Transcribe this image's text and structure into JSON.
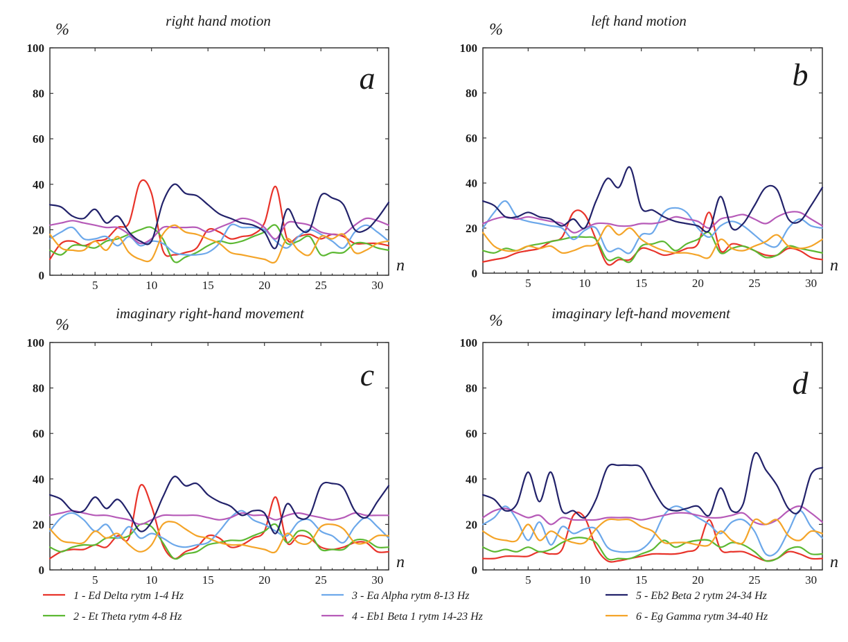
{
  "colors": {
    "delta": "#e8332a",
    "theta": "#5cb832",
    "alpha": "#6ca8ea",
    "beta1": "#b65ab8",
    "beta2": "#22226a",
    "gamma": "#f4a428",
    "axis": "#333333"
  },
  "legend": [
    {
      "key": "delta",
      "label": "1 - Ed Delta rytm 1-4 Hz"
    },
    {
      "key": "theta",
      "label": "2 - Et Theta rytm 4-8 Hz"
    },
    {
      "key": "alpha",
      "label": "3 - Ea Alpha rytm 8-13 Hz"
    },
    {
      "key": "beta1",
      "label": "4 - Eb1 Beta 1 rytm 14-23 Hz"
    },
    {
      "key": "beta2",
      "label": "5 - Eb2 Beta 2 rytm 24-34 Hz"
    },
    {
      "key": "gamma",
      "label": "6 - Eg Gamma rytm 34-40 Hz"
    }
  ],
  "chart_data": [
    {
      "type": "line",
      "title": "right hand motion",
      "panel_label": "a",
      "ylabel": "%",
      "xlabel": "n",
      "xlim": [
        1,
        31
      ],
      "ylim": [
        0,
        100
      ],
      "xticks": [
        5,
        10,
        15,
        20,
        25,
        30
      ],
      "yticks": [
        0,
        20,
        40,
        60,
        80,
        100
      ],
      "grid": false,
      "x": [
        1,
        2,
        3,
        4,
        5,
        6,
        7,
        8,
        9,
        10,
        11,
        12,
        13,
        14,
        15,
        16,
        17,
        18,
        19,
        20,
        21,
        22,
        23,
        24,
        25,
        26,
        27,
        28,
        29,
        30,
        31
      ],
      "series": [
        {
          "key": "delta",
          "name": "1 - Ed Delta rytm 1-4 Hz",
          "values": [
            7,
            14,
            15,
            13,
            15,
            16,
            21,
            23,
            41,
            36,
            11,
            9,
            10,
            12,
            20,
            19,
            16,
            17,
            18,
            23,
            39,
            16,
            17,
            18,
            16,
            18,
            17,
            14,
            14,
            14,
            13
          ]
        },
        {
          "key": "theta",
          "name": "2 - Et Theta rytm 4-8 Hz",
          "values": [
            11,
            9,
            13,
            13,
            12,
            15,
            16,
            18,
            20,
            21,
            16,
            6,
            8,
            10,
            13,
            15,
            14,
            15,
            17,
            19,
            22,
            14,
            15,
            17,
            9,
            10,
            10,
            14,
            14,
            12,
            11
          ]
        },
        {
          "key": "alpha",
          "name": "3 - Ea Alpha rytm 8-13 Hz",
          "values": [
            16,
            19,
            21,
            16,
            16,
            17,
            13,
            17,
            13,
            15,
            14,
            10,
            9,
            9,
            10,
            14,
            22,
            21,
            21,
            20,
            15,
            12,
            17,
            20,
            18,
            15,
            12,
            19,
            22,
            19,
            15
          ]
        },
        {
          "key": "beta1",
          "name": "4 - Eb1 Beta 1 rytm 14-23 Hz",
          "values": [
            22,
            23,
            24,
            23,
            22,
            21,
            21,
            18,
            14,
            16,
            21,
            21,
            21,
            21,
            19,
            21,
            23,
            25,
            24,
            21,
            16,
            23,
            23,
            22,
            19,
            18,
            18,
            22,
            25,
            24,
            22
          ]
        },
        {
          "key": "beta2",
          "name": "5 - Eb2 Beta 2 rytm 24-34 Hz",
          "values": [
            31,
            30,
            26,
            25,
            29,
            23,
            26,
            19,
            15,
            15,
            32,
            40,
            36,
            35,
            31,
            27,
            25,
            23,
            22,
            19,
            12,
            29,
            21,
            20,
            35,
            34,
            31,
            20,
            20,
            25,
            32
          ]
        },
        {
          "key": "gamma",
          "name": "6 - Eg Gamma rytm 34-40 Hz",
          "values": [
            18,
            12,
            11,
            11,
            15,
            11,
            17,
            10,
            7,
            7,
            18,
            22,
            19,
            18,
            16,
            14,
            10,
            9,
            8,
            7,
            6,
            16,
            11,
            9,
            17,
            16,
            18,
            10,
            11,
            14,
            15
          ]
        }
      ]
    },
    {
      "type": "line",
      "title": "left hand motion",
      "panel_label": "b",
      "ylabel": "%",
      "xlabel": "n",
      "xlim": [
        1,
        31
      ],
      "ylim": [
        0,
        100
      ],
      "xticks": [
        5,
        10,
        15,
        20,
        25,
        30
      ],
      "yticks": [
        0,
        20,
        40,
        60,
        80,
        100
      ],
      "grid": false,
      "x": [
        1,
        2,
        3,
        4,
        5,
        6,
        7,
        8,
        9,
        10,
        11,
        12,
        13,
        14,
        15,
        16,
        17,
        18,
        19,
        20,
        21,
        22,
        23,
        24,
        25,
        26,
        27,
        28,
        29,
        30,
        31
      ],
      "series": [
        {
          "key": "delta",
          "name": "1 - Ed Delta rytm 1-4 Hz",
          "values": [
            5,
            6,
            7,
            9,
            10,
            11,
            14,
            16,
            27,
            26,
            15,
            4,
            6,
            6,
            11,
            10,
            8,
            9,
            11,
            13,
            27,
            10,
            13,
            12,
            10,
            8,
            8,
            11,
            10,
            7,
            6
          ]
        },
        {
          "key": "theta",
          "name": "2 - Et Theta rytm 4-8 Hz",
          "values": [
            10,
            9,
            11,
            10,
            12,
            13,
            14,
            15,
            16,
            16,
            15,
            6,
            7,
            5,
            12,
            13,
            14,
            10,
            13,
            15,
            18,
            9,
            11,
            12,
            10,
            7,
            8,
            12,
            11,
            10,
            9
          ]
        },
        {
          "key": "alpha",
          "name": "3 - Ea Alpha rytm 8-13 Hz",
          "values": [
            20,
            27,
            32,
            25,
            23,
            22,
            21,
            20,
            15,
            19,
            20,
            10,
            11,
            9,
            17,
            18,
            27,
            29,
            27,
            20,
            16,
            21,
            23,
            21,
            17,
            13,
            12,
            20,
            24,
            21,
            20
          ]
        },
        {
          "key": "beta1",
          "name": "4 - Eb1 Beta 1 rytm 14-23 Hz",
          "values": [
            22,
            24,
            25,
            24,
            25,
            24,
            23,
            22,
            18,
            20,
            22,
            22,
            21,
            21,
            22,
            22,
            23,
            25,
            24,
            23,
            20,
            24,
            25,
            26,
            24,
            22,
            25,
            27,
            27,
            24,
            21
          ]
        },
        {
          "key": "beta2",
          "name": "5 - Eb2 Beta 2 rytm 24-34 Hz",
          "values": [
            32,
            30,
            25,
            25,
            27,
            25,
            24,
            21,
            24,
            20,
            32,
            42,
            38,
            47,
            29,
            28,
            25,
            23,
            22,
            21,
            19,
            34,
            20,
            22,
            30,
            38,
            37,
            24,
            23,
            30,
            38
          ]
        },
        {
          "key": "gamma",
          "name": "6 - Eg Gamma rytm 34-40 Hz",
          "values": [
            18,
            12,
            10,
            10,
            12,
            11,
            12,
            9,
            10,
            12,
            13,
            21,
            17,
            20,
            15,
            12,
            10,
            9,
            9,
            8,
            7,
            15,
            11,
            10,
            12,
            14,
            17,
            12,
            11,
            12,
            15
          ]
        }
      ]
    },
    {
      "type": "line",
      "title": "imaginary right-hand movement",
      "panel_label": "c",
      "ylabel": "%",
      "xlabel": "n",
      "xlim": [
        1,
        31
      ],
      "ylim": [
        0,
        100
      ],
      "xticks": [
        5,
        10,
        15,
        20,
        25,
        30
      ],
      "yticks": [
        0,
        20,
        40,
        60,
        80,
        100
      ],
      "grid": false,
      "x": [
        1,
        2,
        3,
        4,
        5,
        6,
        7,
        8,
        9,
        10,
        11,
        12,
        13,
        14,
        15,
        16,
        17,
        18,
        19,
        20,
        21,
        22,
        23,
        24,
        25,
        26,
        27,
        28,
        29,
        30,
        31
      ],
      "series": [
        {
          "key": "delta",
          "name": "1 - Ed Delta rytm 1-4 Hz",
          "values": [
            5,
            8,
            9,
            9,
            11,
            10,
            15,
            14,
            37,
            28,
            11,
            5,
            8,
            10,
            15,
            14,
            10,
            11,
            14,
            17,
            32,
            12,
            15,
            14,
            10,
            9,
            10,
            12,
            12,
            8,
            8
          ]
        },
        {
          "key": "theta",
          "name": "2 - Et Theta rytm 4-8 Hz",
          "values": [
            10,
            8,
            10,
            11,
            11,
            14,
            14,
            15,
            20,
            19,
            12,
            5,
            7,
            8,
            11,
            12,
            13,
            13,
            15,
            17,
            20,
            12,
            17,
            16,
            9,
            9,
            9,
            13,
            13,
            10,
            10
          ]
        },
        {
          "key": "alpha",
          "name": "3 - Ea Alpha rytm 8-13 Hz",
          "values": [
            17,
            23,
            25,
            22,
            17,
            20,
            14,
            19,
            14,
            16,
            14,
            11,
            10,
            11,
            12,
            17,
            23,
            26,
            22,
            20,
            17,
            15,
            21,
            22,
            17,
            15,
            12,
            19,
            23,
            19,
            14
          ]
        },
        {
          "key": "beta1",
          "name": "4 - Eb1 Beta 1 rytm 14-23 Hz",
          "values": [
            24,
            25,
            26,
            25,
            24,
            24,
            23,
            22,
            20,
            22,
            24,
            24,
            24,
            24,
            23,
            22,
            23,
            25,
            24,
            24,
            22,
            24,
            25,
            24,
            23,
            22,
            23,
            25,
            24,
            24,
            24
          ]
        },
        {
          "key": "beta2",
          "name": "5 - Eb2 Beta 2 rytm 24-34 Hz",
          "values": [
            33,
            31,
            26,
            26,
            32,
            27,
            31,
            25,
            17,
            21,
            32,
            41,
            37,
            38,
            33,
            30,
            28,
            24,
            26,
            25,
            16,
            29,
            23,
            24,
            37,
            38,
            36,
            26,
            23,
            30,
            37
          ]
        },
        {
          "key": "gamma",
          "name": "6 - Eg Gamma rytm 34-40 Hz",
          "values": [
            18,
            13,
            12,
            12,
            17,
            14,
            16,
            11,
            8,
            11,
            20,
            21,
            18,
            15,
            14,
            12,
            11,
            11,
            10,
            9,
            8,
            16,
            12,
            12,
            19,
            20,
            18,
            12,
            12,
            15,
            15
          ]
        }
      ]
    },
    {
      "type": "line",
      "title": "imaginary left-hand movement",
      "panel_label": "d",
      "ylabel": "%",
      "xlabel": "n",
      "xlim": [
        1,
        31
      ],
      "ylim": [
        0,
        100
      ],
      "xticks": [
        5,
        10,
        15,
        20,
        25,
        30
      ],
      "yticks": [
        0,
        20,
        40,
        60,
        80,
        100
      ],
      "grid": false,
      "x": [
        1,
        2,
        3,
        4,
        5,
        6,
        7,
        8,
        9,
        10,
        11,
        12,
        13,
        14,
        15,
        16,
        17,
        18,
        19,
        20,
        21,
        22,
        23,
        24,
        25,
        26,
        27,
        28,
        29,
        30,
        31
      ],
      "series": [
        {
          "key": "delta",
          "name": "1 - Ed Delta rytm 1-4 Hz",
          "values": [
            5,
            5,
            6,
            6,
            6,
            8,
            7,
            9,
            24,
            23,
            10,
            4,
            4,
            5,
            6,
            7,
            7,
            7,
            8,
            10,
            22,
            9,
            8,
            8,
            6,
            4,
            5,
            8,
            7,
            5,
            5
          ]
        },
        {
          "key": "theta",
          "name": "2 - Et Theta rytm 4-8 Hz",
          "values": [
            10,
            8,
            9,
            8,
            10,
            8,
            9,
            12,
            14,
            14,
            12,
            5,
            5,
            5,
            7,
            9,
            13,
            10,
            12,
            13,
            13,
            10,
            12,
            11,
            8,
            4,
            5,
            9,
            10,
            7,
            7
          ]
        },
        {
          "key": "alpha",
          "name": "3 - Ea Alpha rytm 8-13 Hz",
          "values": [
            20,
            23,
            28,
            22,
            13,
            21,
            11,
            19,
            16,
            18,
            18,
            10,
            8,
            8,
            9,
            14,
            24,
            28,
            26,
            23,
            20,
            16,
            21,
            22,
            17,
            7,
            8,
            17,
            26,
            19,
            14
          ]
        },
        {
          "key": "beta1",
          "name": "4 - Eb1 Beta 1 rytm 14-23 Hz",
          "values": [
            23,
            26,
            27,
            25,
            23,
            24,
            20,
            23,
            22,
            22,
            22,
            23,
            23,
            23,
            22,
            23,
            24,
            25,
            25,
            24,
            23,
            23,
            24,
            25,
            21,
            20,
            22,
            26,
            28,
            25,
            21
          ]
        },
        {
          "key": "beta2",
          "name": "5 - Eb2 Beta 2 rytm 24-34 Hz",
          "values": [
            33,
            31,
            26,
            29,
            43,
            30,
            43,
            26,
            26,
            23,
            31,
            45,
            46,
            46,
            45,
            36,
            28,
            26,
            27,
            28,
            24,
            36,
            26,
            29,
            51,
            44,
            37,
            27,
            26,
            42,
            45
          ]
        },
        {
          "key": "gamma",
          "name": "6 - Eg Gamma rytm 34-40 Hz",
          "values": [
            17,
            14,
            13,
            13,
            20,
            13,
            17,
            14,
            12,
            12,
            18,
            22,
            22,
            22,
            19,
            17,
            12,
            12,
            12,
            11,
            11,
            17,
            13,
            12,
            22,
            20,
            22,
            15,
            13,
            17,
            16
          ]
        }
      ]
    }
  ]
}
